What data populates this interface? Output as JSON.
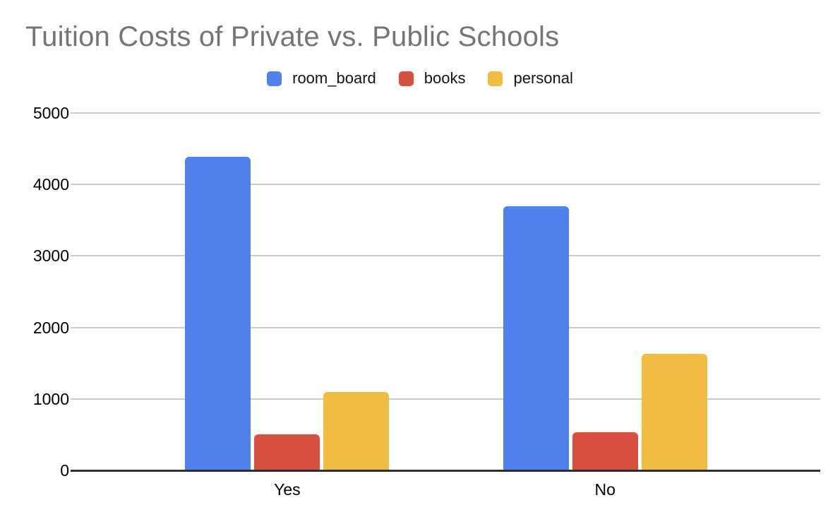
{
  "title": "Tuition Costs of Private vs. Public Schools",
  "colors": {
    "background": "#ffffff",
    "title": "#757575",
    "gridline": "#cccccc",
    "axis_line": "#2e2e2e",
    "tick_label": "#000000"
  },
  "chart_data": {
    "type": "bar",
    "title": "Tuition Costs of Private vs. Public Schools",
    "categories": [
      "Yes",
      "No"
    ],
    "series": [
      {
        "name": "room_board",
        "color": "#4f81ec",
        "values": [
          4390,
          3695
        ]
      },
      {
        "name": "books",
        "color": "#d8503f",
        "values": [
          500,
          530
        ]
      },
      {
        "name": "personal",
        "color": "#f0bc42",
        "values": [
          1100,
          1635
        ]
      }
    ],
    "xlabel": "",
    "ylabel": "",
    "ylim": [
      0,
      5000
    ],
    "yticks": [
      0,
      1000,
      2000,
      3000,
      4000,
      5000
    ],
    "grid": true,
    "legend_position": "top"
  }
}
